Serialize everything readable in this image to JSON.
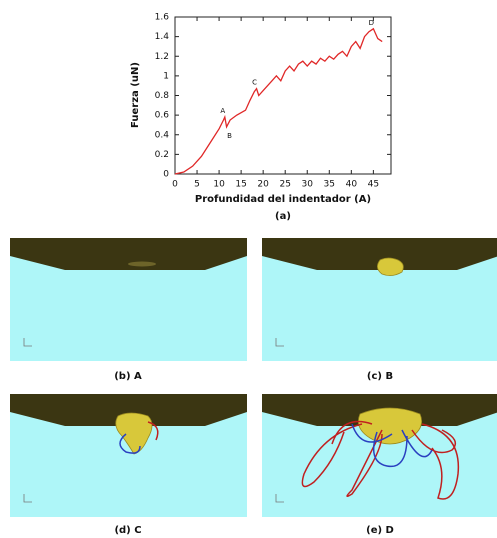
{
  "chart_data": {
    "type": "line",
    "x_label": "Profundidad del indentador (A)",
    "y_label": "Fuerza (uN)",
    "caption": "(a)",
    "x": [
      0,
      2,
      4,
      6,
      8,
      10,
      11,
      11.3,
      11.7,
      12.5,
      14,
      16,
      17,
      18,
      18.5,
      19,
      20,
      21,
      22,
      23,
      24,
      25,
      26,
      27,
      28,
      29,
      30,
      31,
      32,
      33,
      34,
      35,
      36,
      37,
      38,
      39,
      40,
      41,
      42,
      43,
      44,
      45,
      46,
      47
    ],
    "series": [
      {
        "color": "#e02828",
        "values": [
          0,
          0.02,
          0.08,
          0.18,
          0.32,
          0.46,
          0.55,
          0.58,
          0.48,
          0.55,
          0.6,
          0.65,
          0.75,
          0.84,
          0.87,
          0.8,
          0.85,
          0.9,
          0.95,
          1.0,
          0.95,
          1.05,
          1.1,
          1.05,
          1.12,
          1.15,
          1.1,
          1.15,
          1.12,
          1.18,
          1.15,
          1.2,
          1.17,
          1.22,
          1.25,
          1.2,
          1.3,
          1.35,
          1.28,
          1.4,
          1.45,
          1.48,
          1.38,
          1.35
        ]
      }
    ],
    "annotations": [
      {
        "text": "A",
        "x": 11.3,
        "y": 0.58
      },
      {
        "text": "B",
        "x": 11.7,
        "y": 0.48
      },
      {
        "text": "C",
        "x": 18.5,
        "y": 0.87
      },
      {
        "text": "D",
        "x": 45,
        "y": 1.48
      }
    ],
    "xlim": [
      0,
      49
    ],
    "xticks": [
      0,
      5,
      10,
      15,
      20,
      25,
      30,
      35,
      40,
      45
    ],
    "ylim": [
      0,
      1.6
    ],
    "yticks": [
      0,
      0.2,
      0.4,
      0.6,
      0.8,
      1,
      1.2,
      1.4,
      1.6
    ]
  },
  "panels": [
    {
      "label": "(b) A"
    },
    {
      "label": "(c) B"
    },
    {
      "label": "(d) C"
    },
    {
      "label": "(e) D"
    }
  ]
}
